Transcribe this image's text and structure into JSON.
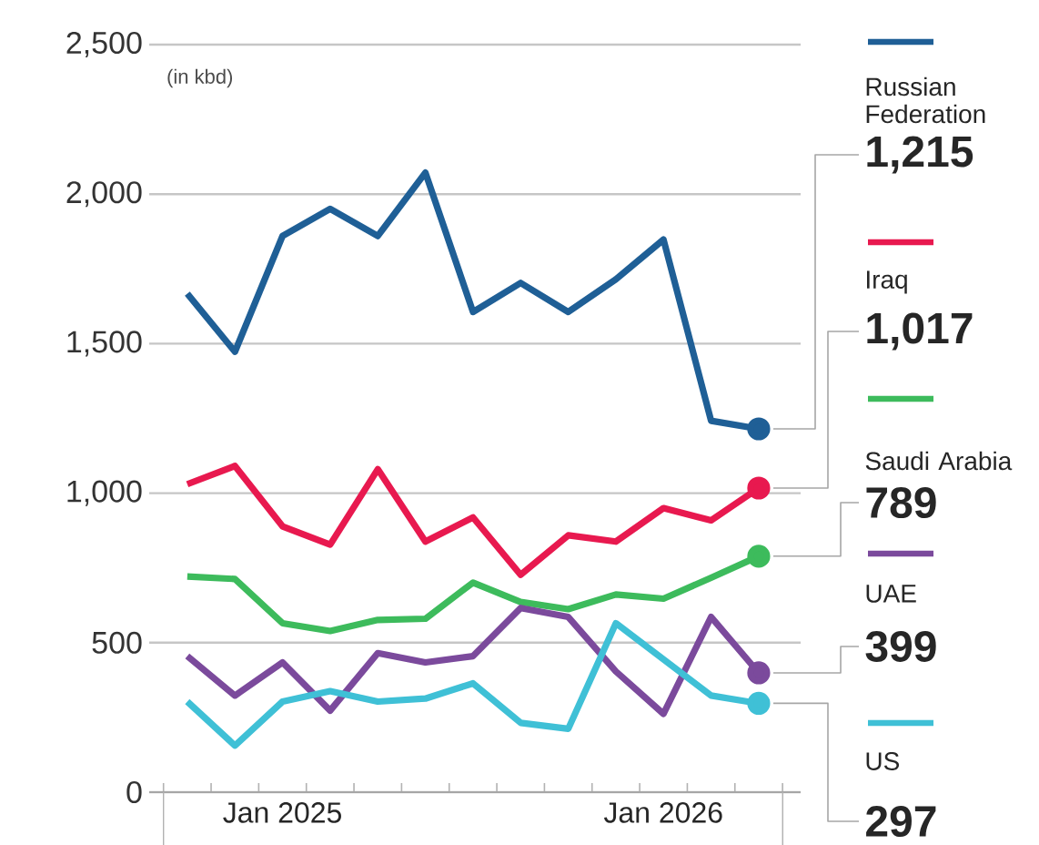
{
  "chart_data": {
    "type": "line",
    "ylabel": "(in kbd)",
    "categories": [
      null,
      null,
      "Jan 2025",
      null,
      null,
      null,
      null,
      null,
      null,
      null,
      "Jan 2026",
      null,
      null
    ],
    "ylim": [
      0,
      2500
    ],
    "yticks": [
      0,
      500,
      {
        "value": 1000,
        "label": "1,000"
      },
      {
        "value": 1500,
        "label": "1,500"
      },
      {
        "value": 2000,
        "label": "2,000"
      },
      {
        "value": 2500,
        "label": "2,500"
      }
    ],
    "grid": "y",
    "legend": "right",
    "line_style": "solid",
    "series": [
      {
        "name": "Russian Federation",
        "color": "#1f5f96",
        "values": [
          1667,
          1473,
          1860,
          1951,
          1860,
          2072,
          1606,
          1703,
          1606,
          1715,
          1848,
          1242,
          1215
        ],
        "value_labels": [
          null,
          null,
          null,
          null,
          null,
          null,
          null,
          null,
          null,
          null,
          null,
          null,
          "1,215"
        ]
      },
      {
        "name": "Iraq",
        "color": "#e8194f",
        "values": [
          1030,
          1091,
          889,
          828,
          1080,
          838,
          919,
          727,
          859,
          838,
          950,
          909,
          1017
        ],
        "value_labels": [
          null,
          null,
          null,
          null,
          null,
          null,
          null,
          null,
          null,
          null,
          null,
          null,
          "1,017"
        ]
      },
      {
        "name": "Saudi Arabia",
        "color": "#3dbb5c",
        "values": [
          721,
          713,
          565,
          539,
          576,
          580,
          701,
          636,
          612,
          661,
          647,
          717,
          789
        ],
        "value_labels": [
          null,
          null,
          null,
          null,
          null,
          null,
          null,
          null,
          null,
          null,
          null,
          null,
          "789"
        ]
      },
      {
        "name": "UAE",
        "color": "#7b4a9c",
        "values": [
          455,
          323,
          434,
          273,
          465,
          434,
          455,
          616,
          586,
          404,
          262,
          586,
          399
        ],
        "value_labels": [
          null,
          null,
          null,
          null,
          null,
          null,
          null,
          null,
          null,
          null,
          null,
          null,
          "399"
        ]
      },
      {
        "name": "US",
        "color": "#3fc0d6",
        "values": [
          303,
          156,
          303,
          338,
          303,
          313,
          364,
          232,
          212,
          565,
          444,
          323,
          297
        ],
        "value_labels": [
          null,
          null,
          null,
          null,
          null,
          null,
          null,
          null,
          null,
          null,
          null,
          null,
          "297"
        ]
      }
    ]
  }
}
